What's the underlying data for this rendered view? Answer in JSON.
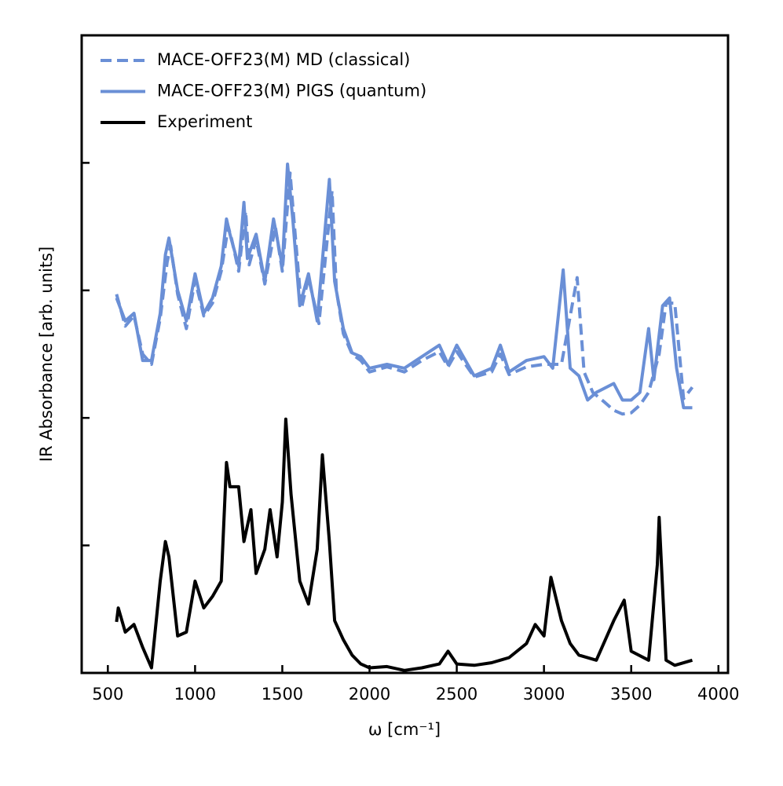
{
  "chart_data": {
    "type": "line",
    "xlabel": "ω [cm⁻¹]",
    "ylabel": "IR Absorbance [arb. units]",
    "xlim": [
      350,
      4055
    ],
    "xticks": [
      500,
      1000,
      1500,
      2000,
      2500,
      3000,
      3500,
      4000
    ],
    "ylim": [
      0,
      5
    ],
    "yticks": [
      1,
      2,
      3,
      4
    ],
    "ytick_labels": false,
    "legend": "upper left",
    "series": [
      {
        "name": "MACE-OFF23(M) MD (classical)",
        "color": "#6a8fd6",
        "dashed": true,
        "x": [
          550,
          600,
          650,
          700,
          750,
          800,
          840,
          860,
          900,
          950,
          1000,
          1050,
          1100,
          1150,
          1190,
          1210,
          1250,
          1290,
          1310,
          1350,
          1400,
          1460,
          1500,
          1545,
          1570,
          1610,
          1650,
          1710,
          1785,
          1810,
          1850,
          1900,
          1950,
          2000,
          2100,
          2200,
          2300,
          2400,
          2450,
          2500,
          2600,
          2700,
          2750,
          2800,
          2900,
          3000,
          3100,
          3190,
          3230,
          3280,
          3350,
          3400,
          3450,
          3500,
          3550,
          3600,
          3660,
          3700,
          3750,
          3800,
          3850
        ],
        "values": [
          2.97,
          2.72,
          2.8,
          2.5,
          2.42,
          2.78,
          3.22,
          3.35,
          2.97,
          2.7,
          3.08,
          2.8,
          2.9,
          3.15,
          3.5,
          3.4,
          3.15,
          3.62,
          3.2,
          3.4,
          3.05,
          3.5,
          3.15,
          3.92,
          3.5,
          2.86,
          3.1,
          2.74,
          3.78,
          3.0,
          2.66,
          2.5,
          2.45,
          2.36,
          2.4,
          2.36,
          2.45,
          2.52,
          2.4,
          2.52,
          2.32,
          2.36,
          2.5,
          2.34,
          2.4,
          2.42,
          2.42,
          3.1,
          2.36,
          2.2,
          2.12,
          2.06,
          2.03,
          2.04,
          2.1,
          2.2,
          2.5,
          2.9,
          2.9,
          2.15,
          2.24
        ]
      },
      {
        "name": "MACE-OFF23(M) PIGS (quantum)",
        "color": "#6a8fd6",
        "dashed": false,
        "x": [
          550,
          600,
          650,
          700,
          750,
          800,
          830,
          850,
          900,
          950,
          1000,
          1050,
          1100,
          1150,
          1180,
          1200,
          1250,
          1280,
          1300,
          1350,
          1400,
          1450,
          1500,
          1530,
          1560,
          1600,
          1650,
          1700,
          1770,
          1800,
          1850,
          1900,
          1950,
          2000,
          2100,
          2200,
          2300,
          2400,
          2450,
          2500,
          2600,
          2700,
          2750,
          2800,
          2900,
          3000,
          3050,
          3110,
          3150,
          3200,
          3250,
          3300,
          3400,
          3450,
          3500,
          3550,
          3600,
          3630,
          3680,
          3720,
          3760,
          3800,
          3850
        ],
        "values": [
          2.94,
          2.76,
          2.82,
          2.45,
          2.45,
          2.82,
          3.28,
          3.41,
          3.0,
          2.76,
          3.13,
          2.82,
          2.94,
          3.19,
          3.56,
          3.44,
          3.19,
          3.69,
          3.25,
          3.44,
          3.07,
          3.56,
          3.19,
          3.99,
          3.56,
          2.88,
          3.13,
          2.76,
          3.87,
          3.07,
          2.7,
          2.51,
          2.48,
          2.39,
          2.42,
          2.39,
          2.48,
          2.57,
          2.42,
          2.57,
          2.33,
          2.39,
          2.57,
          2.36,
          2.45,
          2.48,
          2.39,
          3.16,
          2.39,
          2.33,
          2.14,
          2.2,
          2.27,
          2.14,
          2.14,
          2.2,
          2.7,
          2.3,
          2.88,
          2.94,
          2.39,
          2.08,
          2.08
        ]
      },
      {
        "name": "Experiment",
        "color": "#000000",
        "dashed": false,
        "x": [
          550,
          560,
          600,
          650,
          700,
          750,
          800,
          830,
          850,
          900,
          950,
          1000,
          1050,
          1100,
          1150,
          1180,
          1200,
          1250,
          1280,
          1320,
          1350,
          1400,
          1430,
          1470,
          1500,
          1520,
          1550,
          1600,
          1650,
          1700,
          1730,
          1770,
          1800,
          1850,
          1900,
          1950,
          2000,
          2100,
          2200,
          2300,
          2400,
          2450,
          2500,
          2600,
          2700,
          2800,
          2900,
          2950,
          3000,
          3040,
          3100,
          3150,
          3200,
          3300,
          3400,
          3460,
          3500,
          3600,
          3650,
          3660,
          3700,
          3750,
          3850
        ],
        "values": [
          0.4,
          0.51,
          0.32,
          0.38,
          0.2,
          0.04,
          0.72,
          1.03,
          0.91,
          0.29,
          0.32,
          0.72,
          0.51,
          0.6,
          0.72,
          1.65,
          1.46,
          1.46,
          1.03,
          1.28,
          0.78,
          0.97,
          1.28,
          0.91,
          1.34,
          1.99,
          1.4,
          0.72,
          0.54,
          0.97,
          1.71,
          1.03,
          0.41,
          0.26,
          0.14,
          0.07,
          0.04,
          0.05,
          0.02,
          0.04,
          0.07,
          0.17,
          0.07,
          0.06,
          0.08,
          0.12,
          0.23,
          0.38,
          0.29,
          0.75,
          0.41,
          0.23,
          0.14,
          0.1,
          0.41,
          0.57,
          0.17,
          0.1,
          0.85,
          1.22,
          0.1,
          0.06,
          0.1
        ]
      }
    ]
  }
}
